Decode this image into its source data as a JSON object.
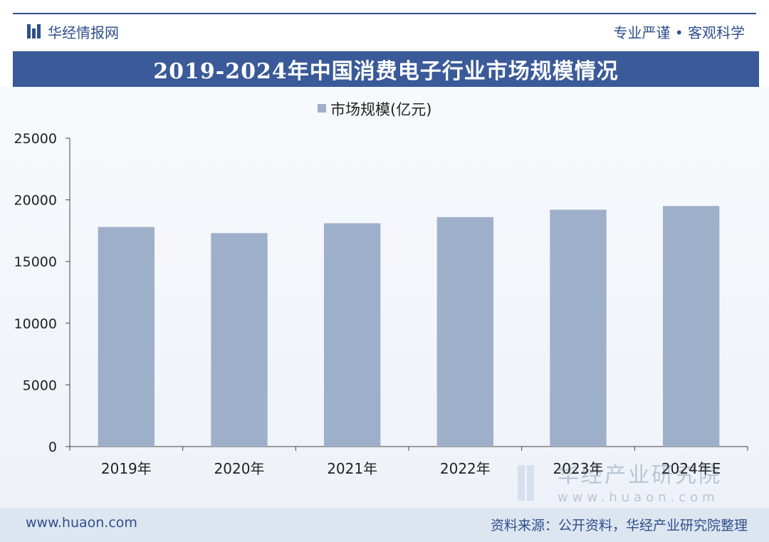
{
  "header": {
    "brand": "华经情报网",
    "slogan": "专业严谨 • 客观科学",
    "title": "2019-2024年中国消费电子行业市场规模情况"
  },
  "footer": {
    "url": "www.huaon.com",
    "source": "资料来源：公开资料，华经产业研究院整理"
  },
  "watermark": {
    "name": "华经产业研究院",
    "domain": "www.huaon.com"
  },
  "colors": {
    "brand": "#2e4f8c",
    "bar": "#9eafca"
  },
  "chart_data": {
    "type": "bar",
    "title": "2019-2024年中国消费电子行业市场规模情况",
    "categories": [
      "2019年",
      "2020年",
      "2021年",
      "2022年",
      "2023年",
      "2024年E"
    ],
    "series": [
      {
        "name": "市场规模(亿元)",
        "values": [
          17800,
          17300,
          18100,
          18600,
          19200,
          19500
        ]
      }
    ],
    "ylim": [
      0,
      25000
    ],
    "yticks": [
      0,
      5000,
      10000,
      15000,
      20000,
      25000
    ],
    "xlabel": "",
    "ylabel": "",
    "legend": "top-center",
    "grid": false
  }
}
